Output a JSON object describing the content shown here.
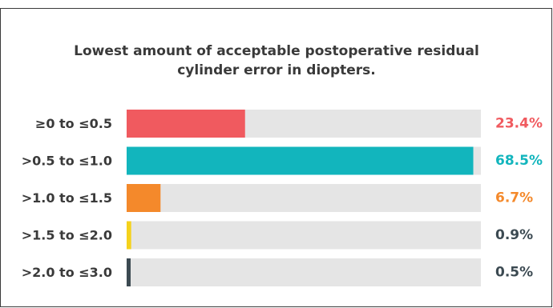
{
  "chart_data": {
    "type": "bar",
    "orientation": "horizontal",
    "title_lines": [
      "Lowest amount of acceptable postoperative residual",
      "cylinder error in diopters."
    ],
    "categories": [
      "≥0 to ≤0.5",
      ">0.5 to ≤1.0",
      ">1.0 to ≤1.5",
      ">1.5 to ≤2.0",
      ">2.0 to ≤3.0"
    ],
    "values": [
      23.4,
      68.5,
      6.7,
      0.9,
      0.5
    ],
    "value_labels": [
      "23.4%",
      "68.5%",
      "6.7%",
      "0.9%",
      "0.5%"
    ],
    "xlim": [
      0,
      70
    ],
    "grid": false,
    "legend": "none",
    "colors": {
      "bars": [
        "#f05a5f",
        "#12b5bd",
        "#f4892b",
        "#f5d21c",
        "#3c4a52"
      ],
      "labels": [
        "#f05a5f",
        "#12b5bd",
        "#f4892b",
        "#3c4a52",
        "#3c4a52"
      ],
      "track": "#e5e5e5",
      "text": "#3a3a3a"
    }
  }
}
